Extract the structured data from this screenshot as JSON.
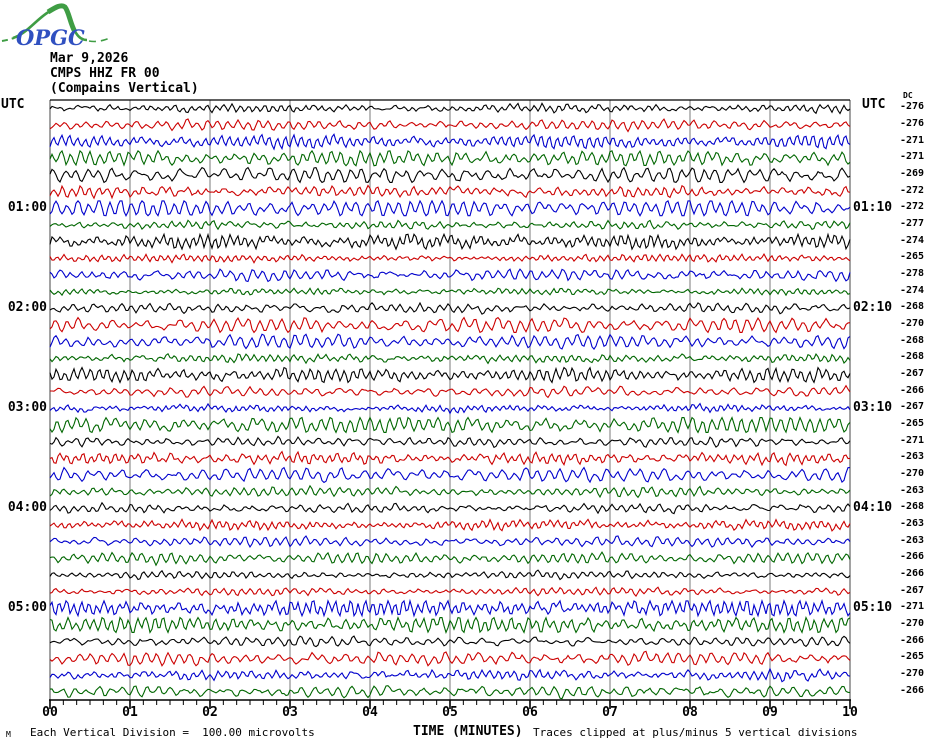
{
  "logo": {
    "name": "OPGC",
    "text_color": "#3050c0",
    "curve_color": "#3f9d44"
  },
  "header": {
    "date": "Mar 9,2026",
    "channel": "CMPS HHZ FR 00",
    "component": "(Compains Vertical)"
  },
  "labels": {
    "utc_left": "UTC",
    "utc_right": "UTC",
    "dc_header": "DC"
  },
  "footer": {
    "corner_mark": "M",
    "scale_note": "Each Vertical Division =  100.00 microvolts",
    "x_title": "TIME (MINUTES)",
    "clip_note": "Traces clipped at plus/minus 5 vertical divisions"
  },
  "chart_data": {
    "type": "line",
    "title": "CMPS HHZ FR 00 (Compains Vertical) helicorder, Mar 9,2026",
    "xlabel": "TIME (MINUTES)",
    "x_range_minutes": [
      0,
      10
    ],
    "x_tick_labels": [
      "00",
      "01",
      "02",
      "03",
      "04",
      "05",
      "06",
      "07",
      "08",
      "09",
      "10"
    ],
    "minor_ticks_per_minute": 6,
    "grid": "vertical lines at each minute",
    "grid_color": "#7a7a7a",
    "microvolts_per_division": 100.0,
    "clip_divisions": 5,
    "trace_colors_cycle": [
      "#000000",
      "#cc0000",
      "#0000cc",
      "#006600"
    ],
    "rows": [
      {
        "start": "00:00",
        "dc": -276
      },
      {
        "start": "00:10",
        "dc": -276
      },
      {
        "start": "00:20",
        "dc": -271
      },
      {
        "start": "00:30",
        "dc": -271
      },
      {
        "start": "00:40",
        "dc": -269
      },
      {
        "start": "00:50",
        "dc": -272
      },
      {
        "start": "01:00",
        "dc": -272,
        "left_label": "01:00",
        "right_label": "01:10"
      },
      {
        "start": "01:10",
        "dc": -277
      },
      {
        "start": "01:20",
        "dc": -274
      },
      {
        "start": "01:30",
        "dc": -265
      },
      {
        "start": "01:40",
        "dc": -278
      },
      {
        "start": "01:50",
        "dc": -274
      },
      {
        "start": "02:00",
        "dc": -268,
        "left_label": "02:00",
        "right_label": "02:10"
      },
      {
        "start": "02:10",
        "dc": -270
      },
      {
        "start": "02:20",
        "dc": -268
      },
      {
        "start": "02:30",
        "dc": -268
      },
      {
        "start": "02:40",
        "dc": -267
      },
      {
        "start": "02:50",
        "dc": -266
      },
      {
        "start": "03:00",
        "dc": -267,
        "left_label": "03:00",
        "right_label": "03:10"
      },
      {
        "start": "03:10",
        "dc": -265
      },
      {
        "start": "03:20",
        "dc": -271
      },
      {
        "start": "03:30",
        "dc": -263
      },
      {
        "start": "03:40",
        "dc": -270
      },
      {
        "start": "03:50",
        "dc": -263
      },
      {
        "start": "04:00",
        "dc": -268,
        "left_label": "04:00",
        "right_label": "04:10"
      },
      {
        "start": "04:10",
        "dc": -263
      },
      {
        "start": "04:20",
        "dc": -263
      },
      {
        "start": "04:30",
        "dc": -266
      },
      {
        "start": "04:40",
        "dc": -266
      },
      {
        "start": "04:50",
        "dc": -267
      },
      {
        "start": "05:00",
        "dc": -271,
        "left_label": "05:00",
        "right_label": "05:10"
      },
      {
        "start": "05:10",
        "dc": -270
      },
      {
        "start": "05:20",
        "dc": -266
      },
      {
        "start": "05:30",
        "dc": -265
      },
      {
        "start": "05:40",
        "dc": -270
      },
      {
        "start": "05:50",
        "dc": -266
      }
    ]
  }
}
